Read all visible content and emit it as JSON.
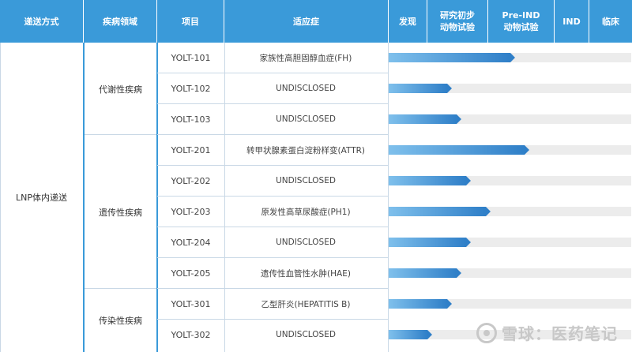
{
  "header": {
    "delivery": "递送方式",
    "area": "疾病领域",
    "project": "项目",
    "indication": "适应症",
    "stages": [
      {
        "line1": "发现",
        "line2": ""
      },
      {
        "line1": "研究初步",
        "line2": "动物试验"
      },
      {
        "line1": "Pre-IND",
        "line2": "动物试验"
      },
      {
        "line1": "IND",
        "line2": ""
      },
      {
        "line1": "临床",
        "line2": ""
      }
    ]
  },
  "delivery": "LNP体内递送",
  "areas": [
    {
      "name": "代谢性疾病"
    },
    {
      "name": "遗传性疾病"
    },
    {
      "name": "传染性疾病"
    }
  ],
  "rows": [
    {
      "code": "YOLT-101",
      "indication": "家族性高胆固醇血症(FH)"
    },
    {
      "code": "YOLT-102",
      "indication": "UNDISCLOSED"
    },
    {
      "code": "YOLT-103",
      "indication": "UNDISCLOSED"
    },
    {
      "code": "YOLT-201",
      "indication": "转甲状腺素蛋白淀粉样变(ATTR)"
    },
    {
      "code": "YOLT-202",
      "indication": "UNDISCLOSED"
    },
    {
      "code": "YOLT-203",
      "indication": "原发性高草尿酸症(PH1)"
    },
    {
      "code": "YOLT-204",
      "indication": "UNDISCLOSED"
    },
    {
      "code": "YOLT-205",
      "indication": "遗传性血管性水肿(HAE)"
    },
    {
      "code": "YOLT-301",
      "indication": "乙型肝炎(HEPATITIS B)"
    },
    {
      "code": "YOLT-302",
      "indication": "UNDISCLOSED"
    }
  ],
  "watermark": "雪球：医药笔记",
  "colors": {
    "header": "#3a9ad9",
    "bar_start": "#7fc0ec",
    "bar_end": "#2f7fc8",
    "track": "#ececec"
  },
  "chart_data": {
    "type": "bar",
    "orientation": "horizontal",
    "categories": [
      "YOLT-101",
      "YOLT-102",
      "YOLT-103",
      "YOLT-201",
      "YOLT-202",
      "YOLT-203",
      "YOLT-204",
      "YOLT-205",
      "YOLT-301",
      "YOLT-302"
    ],
    "stage_scale": [
      "发现",
      "研究初步动物试验",
      "Pre-IND动物试验",
      "IND",
      "临床"
    ],
    "values": [
      2.5,
      1.2,
      1.4,
      2.8,
      1.6,
      2.0,
      1.6,
      1.4,
      1.2,
      0.8
    ],
    "xlim": [
      0,
      5
    ]
  }
}
